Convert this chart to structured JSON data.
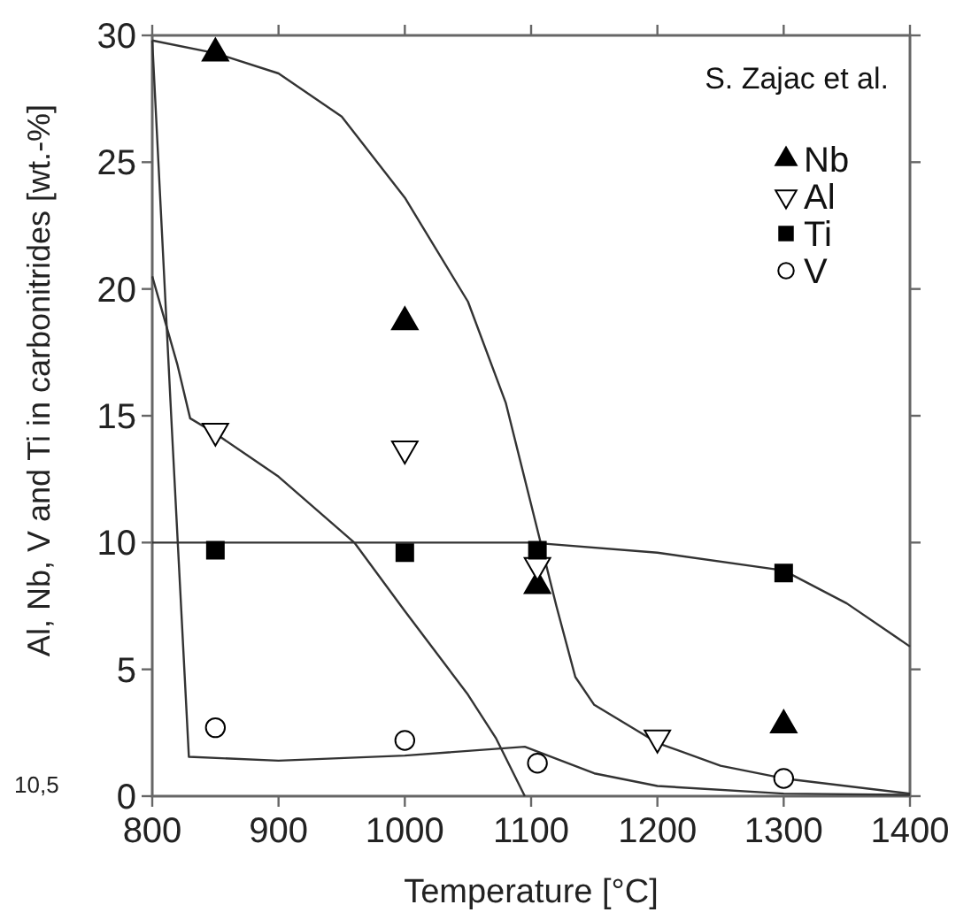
{
  "chart_data": {
    "type": "scatter",
    "xlabel": "Temperature [°C]",
    "ylabel": "Al, Nb, V and Ti in carbonitrides [wt.-%]",
    "annotations": [
      "S. Zajac et al.",
      "10,5"
    ],
    "xlim": [
      800,
      1400
    ],
    "ylim": [
      0,
      30
    ],
    "xticks": [
      800,
      900,
      1000,
      1100,
      1200,
      1300,
      1400
    ],
    "yticks": [
      0,
      5,
      10,
      15,
      20,
      25,
      30
    ],
    "grid": false,
    "legend": "top right",
    "series": [
      {
        "type": "line",
        "color": "#333333",
        "marker": "none",
        "x": [
          800,
          850,
          900,
          950,
          1000,
          1050,
          1080,
          1100,
          1120,
          1135,
          1150,
          1200,
          1250,
          1300,
          1400
        ],
        "values": [
          29.8,
          29.3,
          28.5,
          26.8,
          23.6,
          19.5,
          15.5,
          11.5,
          7.5,
          4.7,
          3.6,
          2.1,
          1.2,
          0.7,
          0.1
        ]
      },
      {
        "type": "line",
        "color": "#333333",
        "marker": "none",
        "x": [
          800,
          900,
          1000,
          1100,
          1200,
          1300,
          1350,
          1400
        ],
        "values": [
          10,
          10,
          10,
          10,
          9.6,
          8.9,
          7.6,
          5.9
        ]
      },
      {
        "type": "line",
        "color": "#333333",
        "marker": "none",
        "x": [
          800,
          820,
          830,
          850,
          900,
          960,
          1000,
          1050,
          1072,
          1095
        ],
        "values": [
          20.5,
          17,
          14.9,
          14.3,
          12.6,
          10,
          7.3,
          4,
          2.3,
          0
        ]
      },
      {
        "type": "line",
        "color": "#333333",
        "marker": "none",
        "x": [
          800,
          815,
          829,
          900,
          1000,
          1095,
          1150,
          1200,
          1300,
          1400
        ],
        "values": [
          29.8,
          15,
          1.55,
          1.4,
          1.6,
          1.95,
          0.9,
          0.4,
          0.1,
          0.05
        ]
      },
      {
        "name": "Nb",
        "color": "#000000",
        "marker": "triangle",
        "x": [
          850,
          1000,
          1105,
          1300
        ],
        "values": [
          29.3,
          18.7,
          8.3,
          2.8
        ]
      },
      {
        "name": "Al",
        "color": "#ffffff",
        "marker": "triangle-down",
        "x": [
          850,
          1000,
          1105,
          1200
        ],
        "values": [
          14.4,
          13.7,
          9.1,
          2.3
        ]
      },
      {
        "name": "Ti",
        "color": "#000000",
        "marker": "square",
        "x": [
          850,
          1000,
          1105,
          1300
        ],
        "values": [
          9.7,
          9.6,
          9.7,
          8.8
        ]
      },
      {
        "name": "V",
        "color": "#ffffff",
        "marker": "circle",
        "x": [
          850,
          1000,
          1105,
          1300
        ],
        "values": [
          2.7,
          2.2,
          1.3,
          0.7
        ]
      }
    ]
  }
}
